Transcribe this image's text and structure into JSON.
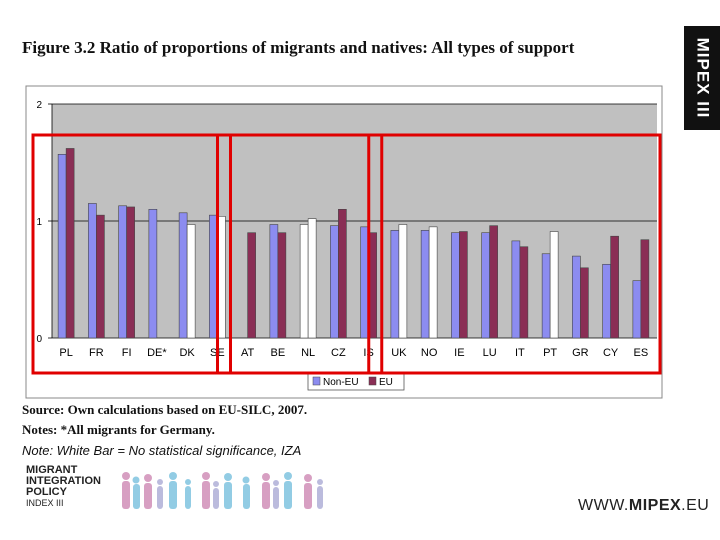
{
  "figure_title": "Figure 3.2 Ratio of proportions of migrants and natives: All types of support",
  "brand_tab": "MIPEX III",
  "source_note": "Source: Own calculations based on EU-SILC, 2007.",
  "notes_line": "Notes: *All migrants for Germany.",
  "significance_note": "Note: White Bar = No statistical significance, IZA",
  "logo": {
    "line1": "MIGRANT",
    "line2": "INTEGRATION",
    "line3": "POLICY",
    "line4": "INDEX III"
  },
  "website": {
    "prefix": "WWW.",
    "brand": "MIPEX",
    "suffix": ".EU"
  },
  "colors": {
    "non_eu": "#8c8cf0",
    "eu": "#8a2e55",
    "not_significant": "#ffffff",
    "plot_bg": "#c0c0c0",
    "highlight": "#e00000"
  },
  "chart_data": {
    "type": "bar",
    "ylim": [
      0,
      2
    ],
    "yticks": [
      "0",
      "1",
      "2"
    ],
    "categories": [
      "PL",
      "FR",
      "FI",
      "DE*",
      "DK",
      "SE",
      "AT",
      "BE",
      "NL",
      "CZ",
      "IS",
      "UK",
      "NO",
      "IE",
      "LU",
      "IT",
      "PT",
      "GR",
      "CY",
      "ES"
    ],
    "series": [
      {
        "name": "Non-EU",
        "values": [
          1.57,
          1.15,
          1.13,
          1.1,
          1.07,
          1.05,
          null,
          0.97,
          0.97,
          0.96,
          0.95,
          0.92,
          0.92,
          0.9,
          0.9,
          0.83,
          0.72,
          0.7,
          0.63,
          0.49
        ],
        "significant": [
          true,
          true,
          true,
          true,
          true,
          true,
          false,
          true,
          false,
          true,
          true,
          true,
          true,
          true,
          true,
          true,
          true,
          true,
          true,
          true
        ]
      },
      {
        "name": "EU",
        "values": [
          1.62,
          1.05,
          1.12,
          null,
          0.97,
          1.04,
          0.9,
          0.9,
          1.02,
          1.1,
          0.9,
          0.97,
          0.95,
          0.91,
          0.96,
          0.78,
          0.91,
          0.6,
          0.87,
          0.84
        ],
        "significant": [
          true,
          true,
          true,
          false,
          false,
          false,
          true,
          true,
          false,
          true,
          true,
          false,
          false,
          true,
          true,
          true,
          false,
          true,
          true,
          true
        ]
      }
    ],
    "groups": [
      {
        "from": "PL",
        "to": "SE"
      },
      {
        "from": "AT",
        "to": "IS"
      },
      {
        "from": "UK",
        "to": "ES"
      }
    ]
  }
}
